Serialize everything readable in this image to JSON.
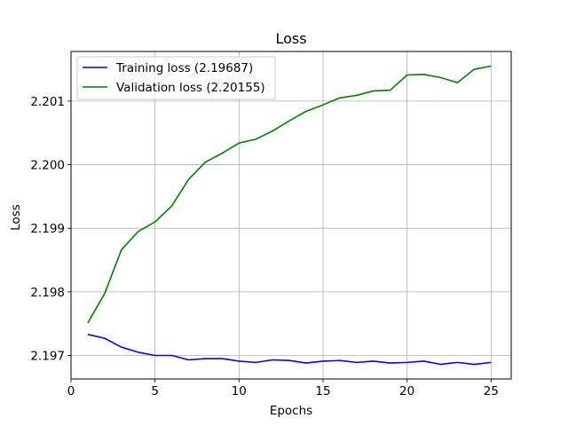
{
  "chart_data": {
    "type": "line",
    "title": "Loss",
    "xlabel": "Epochs",
    "ylabel": "Loss",
    "xlim": [
      0,
      26.2
    ],
    "ylim": [
      2.19663,
      2.20178
    ],
    "xticks": [
      0,
      5,
      10,
      15,
      20,
      25
    ],
    "yticks": [
      2.197,
      2.198,
      2.199,
      2.2,
      2.201
    ],
    "xtick_labels": [
      "0",
      "5",
      "10",
      "15",
      "20",
      "25"
    ],
    "ytick_labels": [
      "2.197",
      "2.198",
      "2.199",
      "2.200",
      "2.201"
    ],
    "grid": true,
    "legend_position": "top-left",
    "x": [
      1,
      2,
      3,
      4,
      5,
      6,
      7,
      8,
      9,
      10,
      11,
      12,
      13,
      14,
      15,
      16,
      17,
      18,
      19,
      20,
      21,
      22,
      23,
      24,
      25
    ],
    "series": [
      {
        "name": "Training loss (2.19687)",
        "color": "#0000ff",
        "values": [
          2.19733,
          2.19727,
          2.19713,
          2.19705,
          2.197,
          2.197,
          2.19693,
          2.19695,
          2.19695,
          2.19691,
          2.19689,
          2.19693,
          2.19692,
          2.19688,
          2.19691,
          2.19692,
          2.19689,
          2.19691,
          2.19688,
          2.19689,
          2.19691,
          2.19686,
          2.19689,
          2.19686,
          2.19689
        ]
      },
      {
        "name": "Validation loss (2.20155)",
        "color": "#008000",
        "values": [
          2.19751,
          2.19797,
          2.19866,
          2.19895,
          2.1991,
          2.19935,
          2.19977,
          2.20004,
          2.20018,
          2.20034,
          2.2004,
          2.20053,
          2.20069,
          2.20084,
          2.20094,
          2.20105,
          2.20109,
          2.20116,
          2.20117,
          2.20141,
          2.20142,
          2.20137,
          2.20129,
          2.2015,
          2.20155
        ]
      }
    ]
  }
}
